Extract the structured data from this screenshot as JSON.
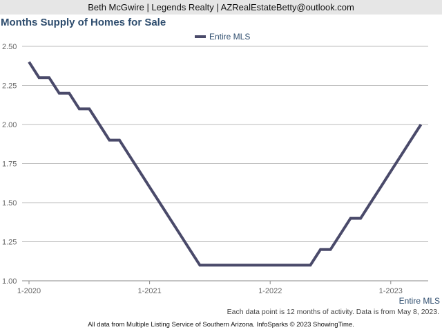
{
  "header": {
    "text": "Beth McGwire | Legends Realty | AZRealEstateBetty@outlook.com"
  },
  "chart_data": {
    "type": "line",
    "title": "Months Supply of Homes for Sale",
    "xlabel": "",
    "ylabel": "",
    "ylim": [
      1.0,
      2.5
    ],
    "yticks": [
      "1.00",
      "1.25",
      "1.50",
      "1.75",
      "2.00",
      "2.25",
      "2.50"
    ],
    "xticks": [
      "1-2020",
      "1-2021",
      "1-2022",
      "1-2023"
    ],
    "grid": true,
    "legend_position": "top-center",
    "series": [
      {
        "name": "Entire MLS",
        "color": "#4a4a6a",
        "x": [
          "2020-01",
          "2020-02",
          "2020-03",
          "2020-04",
          "2020-05",
          "2020-06",
          "2020-07",
          "2020-08",
          "2020-09",
          "2020-10",
          "2020-11",
          "2020-12",
          "2021-01",
          "2021-02",
          "2021-03",
          "2021-04",
          "2021-05",
          "2021-06",
          "2021-07",
          "2021-08",
          "2021-09",
          "2021-10",
          "2021-11",
          "2021-12",
          "2022-01",
          "2022-02",
          "2022-03",
          "2022-04",
          "2022-05",
          "2022-06",
          "2022-07",
          "2022-08",
          "2022-09",
          "2022-10",
          "2022-11",
          "2022-12",
          "2023-01",
          "2023-02",
          "2023-03",
          "2023-04"
        ],
        "values": [
          2.4,
          2.3,
          2.3,
          2.2,
          2.2,
          2.1,
          2.1,
          2.0,
          1.9,
          1.9,
          1.8,
          1.7,
          1.6,
          1.5,
          1.4,
          1.3,
          1.2,
          1.1,
          1.1,
          1.1,
          1.1,
          1.1,
          1.1,
          1.1,
          1.1,
          1.1,
          1.1,
          1.1,
          1.1,
          1.2,
          1.2,
          1.3,
          1.4,
          1.4,
          1.5,
          1.6,
          1.7,
          1.8,
          1.9,
          2.0
        ]
      }
    ],
    "series_end_label": "Entire MLS",
    "note": "Each data point is 12 months of activity. Data is from May 8, 2023."
  },
  "footer": {
    "text": "All data from Multiple Listing Service of Southern Arizona. InfoSparks © 2023 ShowingTime."
  }
}
